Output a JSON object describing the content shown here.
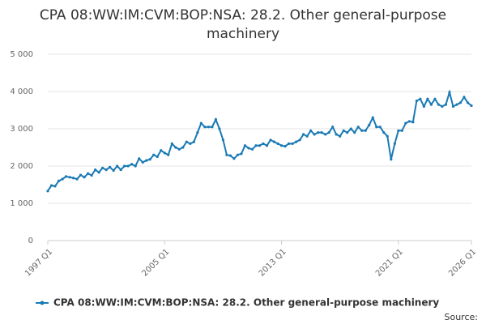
{
  "chart_data": {
    "type": "line",
    "title": "CPA 08:WW:IM:CVM:BOP:NSA: 28.2. Other general-purpose machinery",
    "source": "Source:",
    "categories": [
      "1997 Q1",
      null,
      null,
      null,
      null,
      null,
      null,
      null,
      null,
      null,
      null,
      null,
      null,
      null,
      null,
      null,
      null,
      null,
      null,
      null,
      null,
      null,
      null,
      null,
      null,
      null,
      null,
      null,
      null,
      null,
      null,
      null,
      "2005 Q1",
      null,
      null,
      null,
      null,
      null,
      null,
      null,
      null,
      null,
      null,
      null,
      null,
      null,
      null,
      null,
      null,
      null,
      null,
      null,
      null,
      null,
      null,
      null,
      null,
      null,
      null,
      null,
      null,
      null,
      null,
      null,
      "2013 Q1",
      null,
      null,
      null,
      null,
      null,
      null,
      null,
      null,
      null,
      null,
      null,
      null,
      null,
      null,
      null,
      null,
      null,
      null,
      null,
      null,
      null,
      null,
      null,
      null,
      null,
      null,
      null,
      null,
      null,
      null,
      null,
      "2021 Q1",
      null,
      null,
      null,
      null,
      null,
      null,
      null,
      null,
      null,
      null,
      null,
      null,
      null,
      null,
      null,
      null,
      null,
      null,
      null,
      "2026 Q1"
    ],
    "series": [
      {
        "name": "CPA 08:WW:IM:CVM:BOP:NSA: 28.2. Other general-purpose machinery",
        "color": "#1a7ab5",
        "values": [
          1330,
          1480,
          1460,
          1600,
          1650,
          1720,
          1700,
          1680,
          1650,
          1760,
          1700,
          1800,
          1750,
          1900,
          1830,
          1950,
          1900,
          1970,
          1880,
          2000,
          1900,
          2000,
          2000,
          2050,
          2000,
          2200,
          2100,
          2150,
          2180,
          2300,
          2250,
          2420,
          2350,
          2300,
          2600,
          2500,
          2450,
          2500,
          2650,
          2600,
          2650,
          2900,
          3150,
          3050,
          3050,
          3050,
          3250,
          3000,
          2700,
          2300,
          2280,
          2200,
          2300,
          2330,
          2550,
          2480,
          2450,
          2550,
          2550,
          2600,
          2550,
          2700,
          2650,
          2600,
          2550,
          2530,
          2600,
          2600,
          2650,
          2700,
          2850,
          2800,
          2950,
          2850,
          2900,
          2900,
          2850,
          2900,
          3050,
          2850,
          2800,
          2950,
          2900,
          3000,
          2900,
          3050,
          2950,
          2950,
          3100,
          3300,
          3050,
          3050,
          2900,
          2800,
          2180,
          2600,
          2950,
          2950,
          3150,
          3200,
          3180,
          3750,
          3800,
          3600,
          3800,
          3650,
          3800,
          3650,
          3600,
          3650,
          3980,
          3600,
          3650,
          3700,
          3850,
          3700,
          3620
        ]
      }
    ],
    "ylim": [
      0,
      5000
    ],
    "yticks": [
      0,
      {
        "value": 1000,
        "label": "1 000"
      },
      {
        "value": 2000,
        "label": "2 000"
      },
      {
        "value": 3000,
        "label": "3 000"
      },
      {
        "value": 4000,
        "label": "4 000"
      },
      {
        "value": 5000,
        "label": "5 000"
      }
    ],
    "grid": true
  }
}
